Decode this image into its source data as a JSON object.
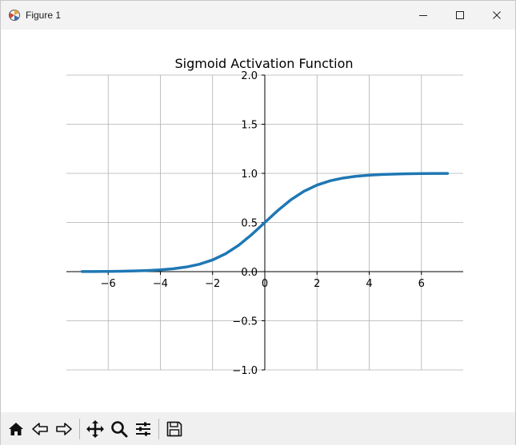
{
  "window": {
    "title": "Figure 1",
    "controls": [
      "minimize-icon",
      "maximize-icon",
      "close-icon"
    ]
  },
  "toolbar": {
    "buttons": [
      "home-icon",
      "back-icon",
      "forward-icon",
      "pan-icon",
      "zoom-icon",
      "configure-subplots-icon",
      "save-icon"
    ]
  },
  "chart_data": {
    "type": "line",
    "title": "Sigmoid Activation Function",
    "xlabel": "",
    "ylabel": "",
    "xlim": [
      -7.6,
      7.6
    ],
    "ylim": [
      -1.0,
      2.0
    ],
    "xticks": [
      -6,
      -4,
      -2,
      0,
      2,
      4,
      6
    ],
    "xtick_labels": [
      "−6",
      "−4",
      "−2",
      "0",
      "2",
      "4",
      "6"
    ],
    "yticks": [
      -1.0,
      -0.5,
      0.0,
      0.5,
      1.0,
      1.5,
      2.0
    ],
    "ytick_labels": [
      "−1.0",
      "−0.5",
      "0.0",
      "0.5",
      "1.0",
      "1.5",
      "2.0"
    ],
    "grid": true,
    "spines": "centered at origin",
    "series": [
      {
        "color": "#1f77b4",
        "x": [
          -7,
          -6.5,
          -6,
          -5.5,
          -5,
          -4.5,
          -4,
          -3.5,
          -3,
          -2.5,
          -2,
          -1.5,
          -1,
          -0.5,
          0,
          0.5,
          1,
          1.5,
          2,
          2.5,
          3,
          3.5,
          4,
          4.5,
          5,
          5.5,
          6,
          6.5,
          7
        ],
        "y": [
          0.0009,
          0.0015,
          0.0025,
          0.0041,
          0.0067,
          0.011,
          0.018,
          0.0293,
          0.0474,
          0.0759,
          0.1192,
          0.1824,
          0.2689,
          0.3775,
          0.5,
          0.6225,
          0.7311,
          0.8176,
          0.8808,
          0.9241,
          0.9526,
          0.9707,
          0.982,
          0.989,
          0.9933,
          0.9959,
          0.9975,
          0.9985,
          0.9991
        ]
      }
    ]
  }
}
